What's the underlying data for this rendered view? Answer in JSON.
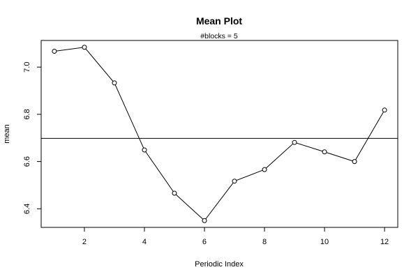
{
  "chart_data": {
    "type": "line",
    "title": "Mean Plot",
    "subtitle": "#blocks =  5",
    "xlabel": "Periodic Index",
    "ylabel": "mean",
    "x": [
      1,
      2,
      3,
      4,
      5,
      6,
      7,
      8,
      9,
      10,
      11,
      12
    ],
    "values": [
      7.067,
      7.084,
      6.933,
      6.649,
      6.466,
      6.35,
      6.517,
      6.566,
      6.681,
      6.641,
      6.6,
      6.818
    ],
    "reference_line": 6.698,
    "x_ticks": [
      2,
      4,
      6,
      8,
      10,
      12
    ],
    "y_ticks": [
      6.4,
      6.6,
      6.8,
      7.0
    ],
    "y_tick_labels": [
      "6.4",
      "6.6",
      "6.8",
      "7.0"
    ],
    "xlim": [
      0.56,
      12.44
    ],
    "ylim": [
      6.3212,
      7.1128
    ],
    "grid": false,
    "markers": "open-circle"
  }
}
